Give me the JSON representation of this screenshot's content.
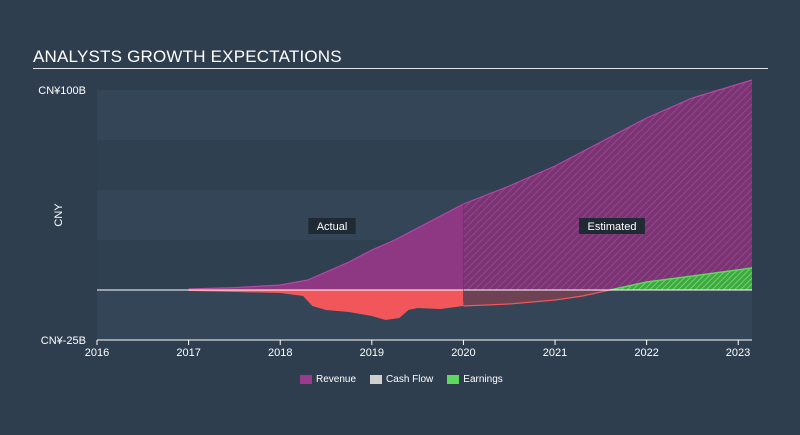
{
  "title": "ANALYSTS GROWTH EXPECTATIONS",
  "colors": {
    "background": "#2e3e4e",
    "revenue": "#9b3a8e",
    "cash_flow": "#f0565a",
    "earnings": "#5ed85e"
  },
  "chart_data": {
    "type": "area",
    "ylabel": "CNY",
    "y_ticks": [
      "CN¥100B",
      "CN¥-25B"
    ],
    "ylim": [
      -25,
      100
    ],
    "xlim": [
      2016.0,
      2023.15
    ],
    "x_ticks": [
      "2016",
      "2017",
      "2018",
      "2019",
      "2020",
      "2021",
      "2022",
      "2023"
    ],
    "annotations": [
      "Actual",
      "Estimated"
    ],
    "actual_end": 2020.0,
    "grid": true,
    "legend_position": "bottom",
    "series": [
      {
        "name": "Revenue",
        "x": [
          2017.0,
          2017.5,
          2018.0,
          2018.3,
          2018.5,
          2018.75,
          2019.0,
          2019.25,
          2019.5,
          2019.75,
          2020.0,
          2020.5,
          2021.0,
          2021.5,
          2022.0,
          2022.5,
          2023.15
        ],
        "y": [
          0.5,
          1.2,
          2.5,
          5,
          9,
          14,
          20,
          25,
          31,
          37,
          43,
          52,
          62,
          74,
          86,
          96,
          105
        ]
      },
      {
        "name": "Cash Flow",
        "x": [
          2017.0,
          2017.5,
          2018.0,
          2018.25,
          2018.35,
          2018.5,
          2018.75,
          2019.0,
          2019.15,
          2019.3,
          2019.4,
          2019.5,
          2019.75,
          2020.0,
          2020.5,
          2021.0,
          2021.3,
          2021.6
        ],
        "y": [
          -0.5,
          -1,
          -1.5,
          -3,
          -8,
          -10,
          -11,
          -13,
          -15,
          -14,
          -10,
          -9,
          -9.5,
          -8,
          -7,
          -5,
          -3,
          0
        ]
      },
      {
        "name": "Earnings",
        "x": [
          2021.6,
          2022.0,
          2022.5,
          2023.15
        ],
        "y": [
          0,
          4,
          7,
          11
        ]
      }
    ]
  },
  "legend": {
    "revenue": "Revenue",
    "cash_flow": "Cash Flow",
    "earnings": "Earnings"
  }
}
